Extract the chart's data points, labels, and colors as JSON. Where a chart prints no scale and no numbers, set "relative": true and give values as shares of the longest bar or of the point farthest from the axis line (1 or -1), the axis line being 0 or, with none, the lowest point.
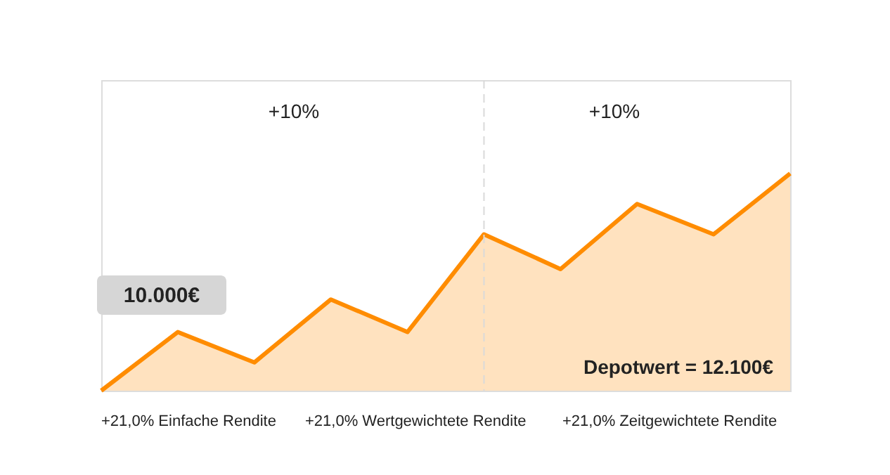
{
  "chart_data": {
    "type": "area",
    "relative": true,
    "categories": [
      null,
      null,
      null,
      null,
      null,
      null,
      null,
      null,
      null,
      null
    ],
    "grid": false,
    "marker": "none",
    "line_style": "solid",
    "series": [
      {
        "color": "#ff8c00",
        "values": [
          0,
          0.27,
          0.13,
          0.42,
          0.27,
          0.72,
          0.56,
          0.86,
          0.72,
          1
        ]
      }
    ],
    "annotations": [
      "+10%",
      "+10%",
      "10.000€",
      "Depotwert = 12.100€",
      "+21,0% Einfache Rendite",
      "+21,0% Wertgewichtete Rendite",
      "+21,0% Zeitgewichtete Rendite"
    ]
  }
}
